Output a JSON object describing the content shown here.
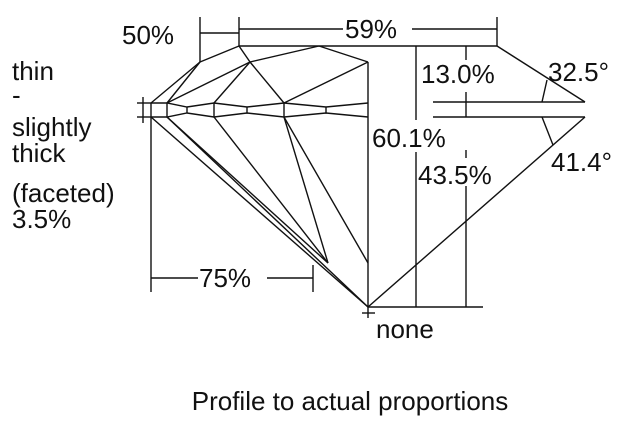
{
  "labels": {
    "crown_angle_ratio": "50%",
    "table": "59%",
    "crown_height": "13.0%",
    "crown_angle": "32.5°",
    "total_depth": "60.1%",
    "pavilion_depth": "43.5%",
    "pavilion_angle": "41.4°",
    "lower_half": "75%",
    "culet": "none",
    "girdle": [
      "thin",
      "-",
      "slightly",
      "thick",
      "(faceted)",
      "3.5%"
    ]
  },
  "caption": "Profile to actual proportions"
}
